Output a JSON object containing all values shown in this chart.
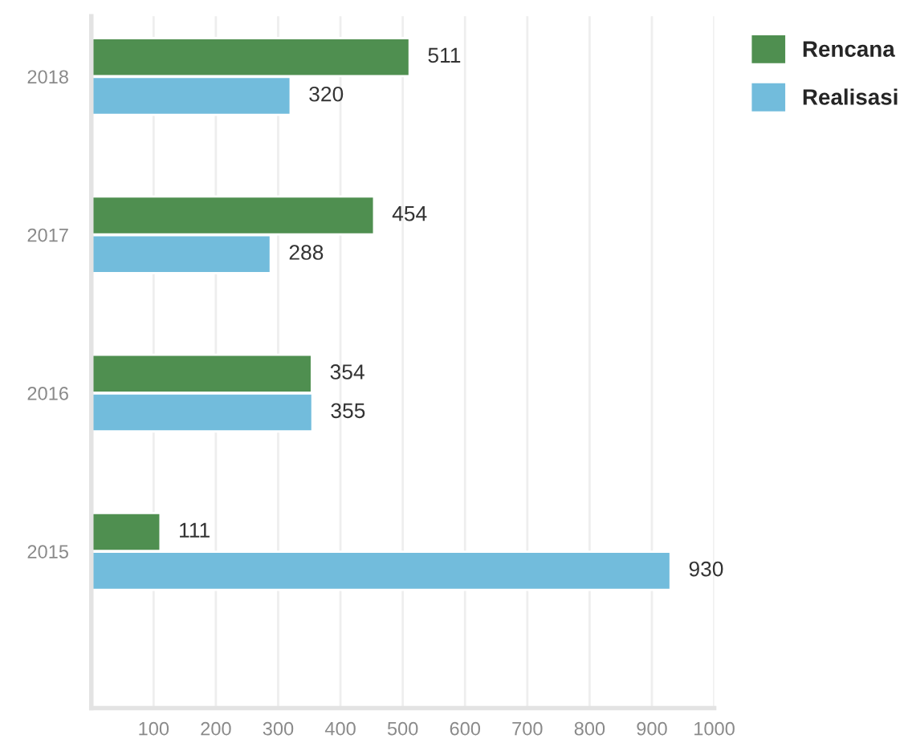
{
  "chart_data": {
    "type": "bar",
    "orientation": "horizontal",
    "categories": [
      "2018",
      "2017",
      "2016",
      "2015"
    ],
    "series": [
      {
        "name": "Rencana",
        "color": "#4f8f50",
        "values": [
          511,
          454,
          354,
          111
        ]
      },
      {
        "name": "Realisasi",
        "color": "#72bcdc",
        "values": [
          320,
          288,
          355,
          930
        ]
      }
    ],
    "xlim": [
      0,
      1000
    ],
    "xticks": [
      {
        "value": 0,
        "label": null
      },
      100,
      200,
      300,
      400,
      500,
      600,
      700,
      800,
      900,
      1000
    ],
    "grid": "x",
    "legend": "top right",
    "data_labels": true
  }
}
